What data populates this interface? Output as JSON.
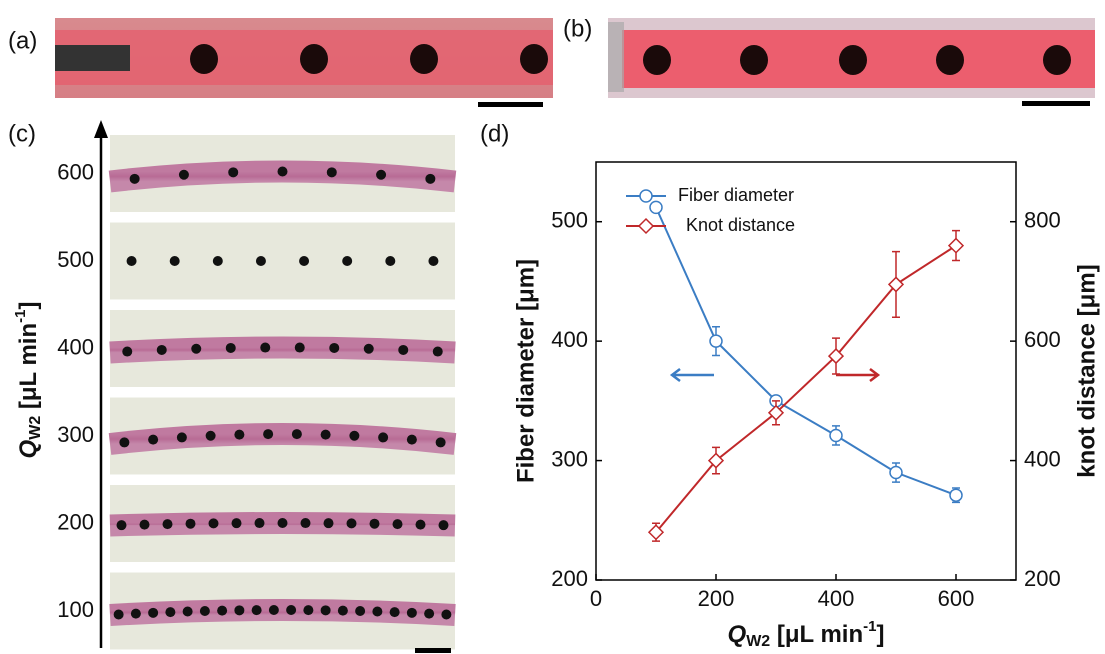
{
  "figure": {
    "panel_labels": [
      "(a)",
      "(b)",
      "(c)",
      "(d)"
    ],
    "panel_c": {
      "ticks": [
        "600",
        "500",
        "400",
        "300",
        "200",
        "100"
      ],
      "y_label": {
        "symbol": "Q",
        "sub": "W2",
        "unit": " [μL min",
        "sup": "-1",
        "close": "]"
      }
    }
  },
  "chart_data": {
    "type": "line",
    "x_label": {
      "symbol": "Q",
      "sub": "W2",
      "unit": " [μL min",
      "sup": "-1",
      "close": "]"
    },
    "y_label": "Fiber diameter [μm]",
    "y2_label": "knot distance [μm]",
    "x": [
      100,
      200,
      300,
      400,
      500,
      600
    ],
    "xlim": [
      0,
      700
    ],
    "xticks": [
      0,
      200,
      400,
      600
    ],
    "ylim": [
      200,
      550
    ],
    "yticks": [
      200,
      300,
      400,
      500
    ],
    "y2lim": [
      200,
      900
    ],
    "y2ticks": [
      200,
      400,
      600,
      800
    ],
    "legend": "top-left",
    "series": [
      {
        "name": "Fiber diameter",
        "color": "#3b7dc4",
        "marker": "circle",
        "values": [
          512,
          400,
          350,
          321,
          290,
          271
        ],
        "errors": [
          3,
          12,
          4,
          8,
          8,
          6
        ]
      },
      {
        "name": "Knot distance",
        "color": "#c0282a",
        "marker": "diamond",
        "axis": "y2",
        "values": [
          280,
          400,
          480,
          575,
          695,
          760
        ],
        "errors": [
          15,
          22,
          20,
          30,
          55,
          25
        ]
      }
    ]
  }
}
